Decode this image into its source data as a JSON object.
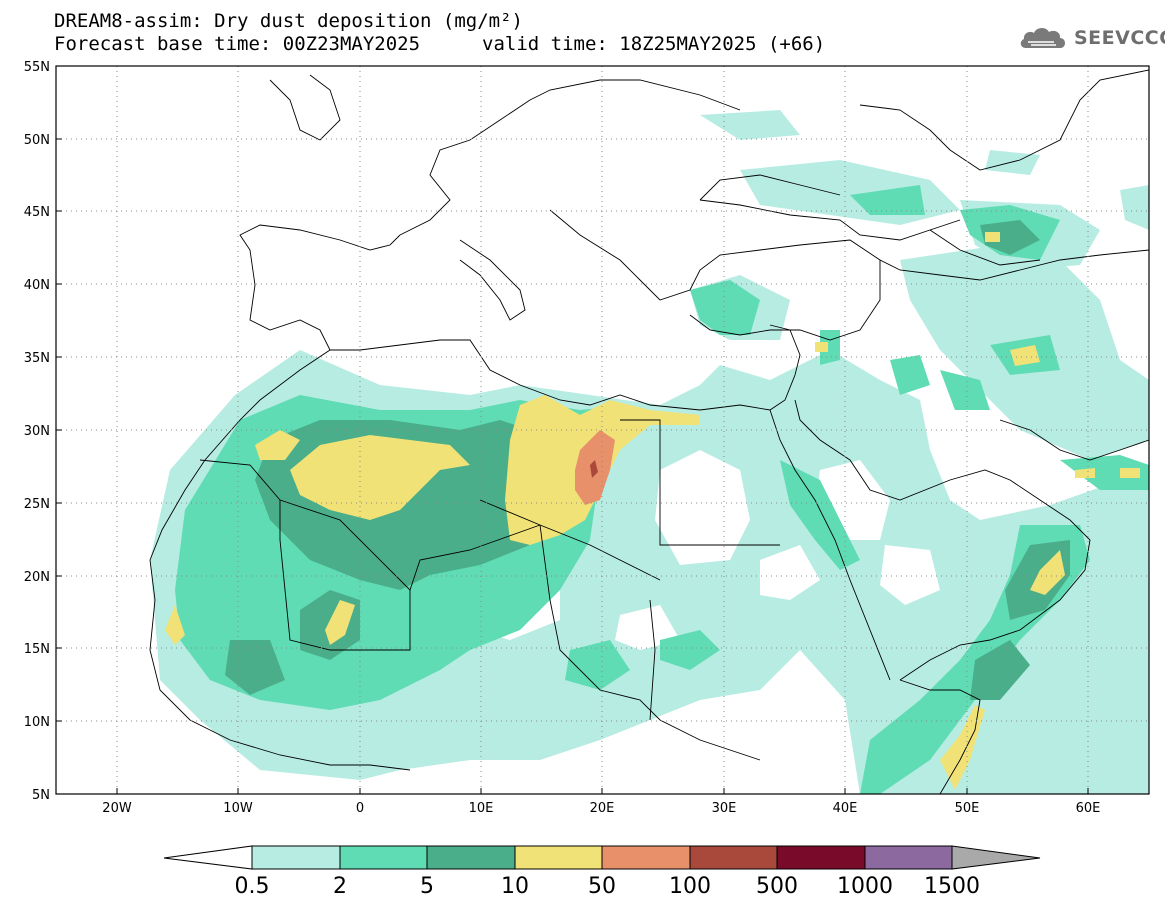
{
  "title": {
    "line1": "DREAM8-assim: Dry dust deposition (mg/m²)",
    "base_time": "Forecast base time: 00Z23MAY2025",
    "valid_time": "valid time: 18Z25MAY2025 (+66)"
  },
  "logo": {
    "icon": "cloud-icon",
    "text": "SEEVCCC"
  },
  "map": {
    "lon_range": [
      -25,
      65
    ],
    "lat_range": [
      5,
      55
    ],
    "lon_ticks": [
      {
        "value": -20,
        "label": "20W"
      },
      {
        "value": -10,
        "label": "10W"
      },
      {
        "value": 0,
        "label": "0"
      },
      {
        "value": 10,
        "label": "10E"
      },
      {
        "value": 20,
        "label": "20E"
      },
      {
        "value": 30,
        "label": "30E"
      },
      {
        "value": 40,
        "label": "40E"
      },
      {
        "value": 50,
        "label": "50E"
      },
      {
        "value": 60,
        "label": "60E"
      }
    ],
    "lat_ticks": [
      {
        "value": 55,
        "label": "55N"
      },
      {
        "value": 50,
        "label": "50N"
      },
      {
        "value": 45,
        "label": "45N"
      },
      {
        "value": 40,
        "label": "40N"
      },
      {
        "value": 35,
        "label": "35N"
      },
      {
        "value": 30,
        "label": "30N"
      },
      {
        "value": 25,
        "label": "25N"
      },
      {
        "value": 20,
        "label": "20N"
      },
      {
        "value": 15,
        "label": "15N"
      },
      {
        "value": 10,
        "label": "10N"
      },
      {
        "value": 5,
        "label": "5N"
      }
    ],
    "grid": "dotted"
  },
  "colorbar": {
    "colors": [
      "#b7ece3",
      "#5fdcb4",
      "#4aae8a",
      "#f0e277",
      "#e8906a",
      "#a8493c",
      "#7a0a2a",
      "#8c6aa0",
      "#a9a9a9"
    ],
    "labels": [
      "0.5",
      "2",
      "5",
      "10",
      "50",
      "100",
      "500",
      "1000",
      "1500"
    ]
  }
}
